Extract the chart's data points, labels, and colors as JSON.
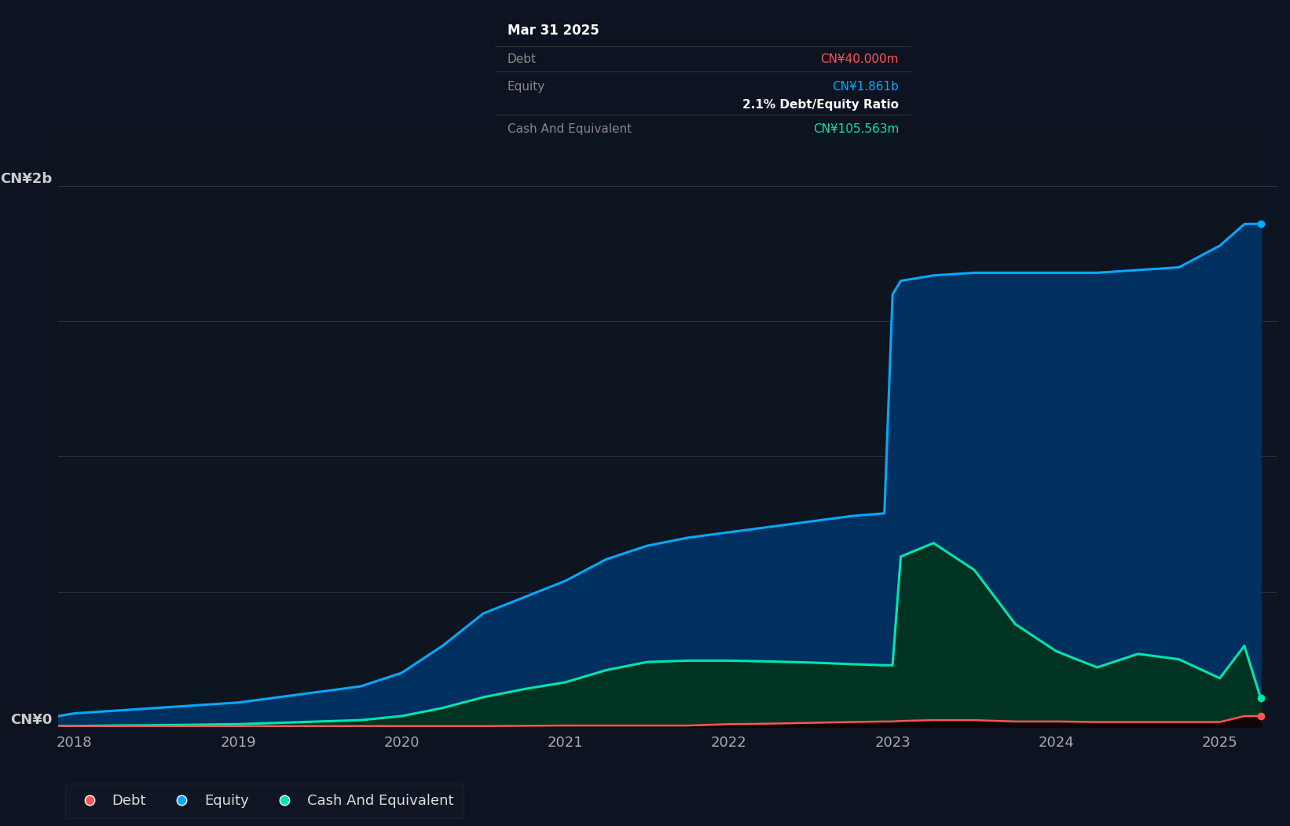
{
  "background_color": "#0d1320",
  "chart_bg_color": "#0d1520",
  "grid_color": "#2a3a4a",
  "equity_color": "#00aaff",
  "debt_color": "#ff5555",
  "cash_color": "#00e5b0",
  "equity_fill": "#003060",
  "cash_fill": "#003322",
  "tooltip": {
    "date": "Mar 31 2025",
    "debt_label": "Debt",
    "debt_value": "CN¥40.000m",
    "debt_color": "#ff5555",
    "equity_label": "Equity",
    "equity_value": "CN¥1.861b",
    "equity_color": "#00aaff",
    "ratio_text": "2.1% Debt/Equity Ratio",
    "ratio_color": "#ffffff",
    "cash_label": "Cash And Equivalent",
    "cash_value": "CN¥105.563m",
    "cash_color": "#00e5b0",
    "bg_color": "#000000",
    "label_color": "#888888",
    "border_color": "#333333"
  },
  "legend": [
    {
      "label": "Debt",
      "color": "#ff5555"
    },
    {
      "label": "Equity",
      "color": "#00aaff"
    },
    {
      "label": "Cash And Equivalent",
      "color": "#00e5b0"
    }
  ],
  "time_points": [
    2017.9,
    2018.0,
    2018.25,
    2018.5,
    2018.75,
    2019.0,
    2019.25,
    2019.5,
    2019.75,
    2020.0,
    2020.25,
    2020.5,
    2020.75,
    2021.0,
    2021.25,
    2021.5,
    2021.75,
    2022.0,
    2022.25,
    2022.5,
    2022.75,
    2022.95,
    2023.0,
    2023.05,
    2023.25,
    2023.5,
    2023.75,
    2024.0,
    2024.25,
    2024.5,
    2024.75,
    2025.0,
    2025.15,
    2025.25
  ],
  "equity": [
    0.04,
    0.05,
    0.06,
    0.07,
    0.08,
    0.09,
    0.11,
    0.13,
    0.15,
    0.2,
    0.3,
    0.42,
    0.48,
    0.54,
    0.62,
    0.67,
    0.7,
    0.72,
    0.74,
    0.76,
    0.78,
    0.79,
    1.6,
    1.65,
    1.67,
    1.68,
    1.68,
    1.68,
    1.68,
    1.69,
    1.7,
    1.78,
    1.86,
    1.861
  ],
  "debt": [
    0.002,
    0.002,
    0.002,
    0.002,
    0.003,
    0.003,
    0.003,
    0.003,
    0.003,
    0.003,
    0.003,
    0.003,
    0.004,
    0.005,
    0.005,
    0.005,
    0.005,
    0.01,
    0.012,
    0.015,
    0.018,
    0.02,
    0.02,
    0.022,
    0.025,
    0.025,
    0.02,
    0.02,
    0.018,
    0.018,
    0.018,
    0.018,
    0.04,
    0.04
  ],
  "cash": [
    0.003,
    0.003,
    0.005,
    0.006,
    0.008,
    0.01,
    0.015,
    0.02,
    0.025,
    0.04,
    0.07,
    0.11,
    0.14,
    0.165,
    0.21,
    0.24,
    0.245,
    0.245,
    0.242,
    0.238,
    0.232,
    0.228,
    0.228,
    0.63,
    0.68,
    0.58,
    0.38,
    0.28,
    0.22,
    0.27,
    0.25,
    0.18,
    0.3,
    0.1056
  ],
  "ylim": [
    0,
    2.2
  ],
  "xlim": [
    2017.9,
    2025.35
  ],
  "x_tick_positions": [
    2018,
    2019,
    2020,
    2021,
    2022,
    2023,
    2024,
    2025
  ],
  "x_tick_labels": [
    "2018",
    "2019",
    "2020",
    "2021",
    "2022",
    "2023",
    "2024",
    "2025"
  ],
  "ytop_label": "CN¥2b",
  "ybottom_label": "CN¥0"
}
